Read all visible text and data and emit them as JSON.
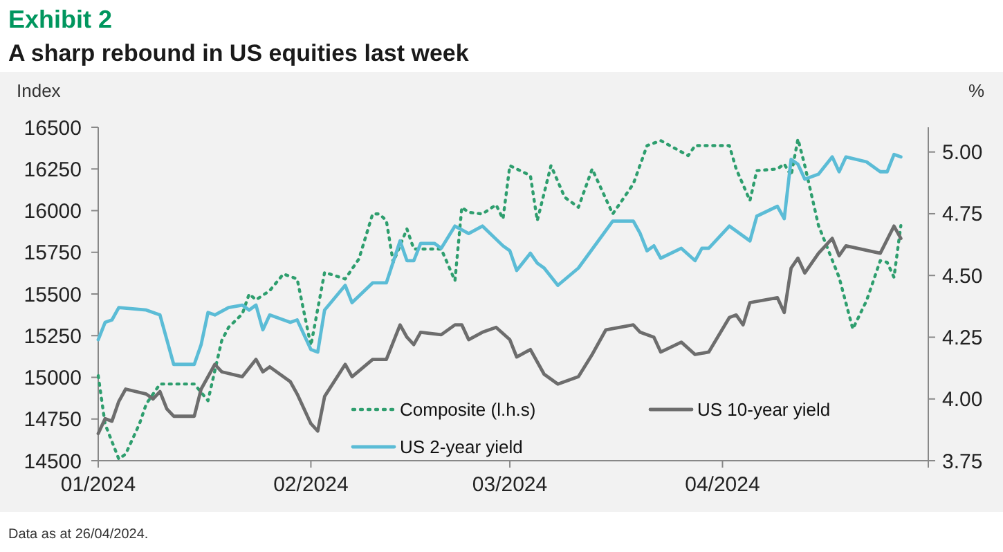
{
  "chart_data": {
    "type": "line",
    "title": "Exhibit 2",
    "subtitle": "A sharp rebound in US equities last week",
    "ylabel": "Index",
    "y2label": "%",
    "annotations": [
      "Data as at 26/04/2024."
    ],
    "xlim": [
      "2024-01-01",
      "2024-05-01"
    ],
    "xticks": [
      {
        "value": "2024-01-01",
        "label": "01/2024"
      },
      {
        "value": "2024-02-01",
        "label": "02/2024"
      },
      {
        "value": "2024-03-01",
        "label": "03/2024"
      },
      {
        "value": "2024-04-01",
        "label": "04/2024"
      },
      {
        "value": "2024-05-01",
        "label": null
      }
    ],
    "ylim": [
      14500,
      16500
    ],
    "yticks": [
      14500,
      14750,
      15000,
      15250,
      15500,
      15750,
      16000,
      16250,
      16500
    ],
    "y2lim": [
      3.75,
      5.1
    ],
    "y2ticks": [
      {
        "value": 3.75,
        "label": "3.75"
      },
      {
        "value": 4,
        "label": "4.00"
      },
      {
        "value": 4.25,
        "label": "4.25"
      },
      {
        "value": 4.5,
        "label": "4.50"
      },
      {
        "value": 4.75,
        "label": "4.75"
      },
      {
        "value": 5,
        "label": "5.00"
      }
    ],
    "grid": false,
    "legend": "bottom",
    "marker": "none",
    "series": [
      {
        "name": "Composite (l.h.s)",
        "color": "#2e9e6e",
        "line_style": "dotted",
        "x": [
          "2024-01-01",
          "2024-01-02",
          "2024-01-04",
          "2024-01-05",
          "2024-01-07",
          "2024-01-08",
          "2024-01-10",
          "2024-01-15",
          "2024-01-17",
          "2024-01-19",
          "2024-01-20",
          "2024-01-22",
          "2024-01-23",
          "2024-01-24",
          "2024-01-26",
          "2024-01-28",
          "2024-01-30",
          "2024-02-01",
          "2024-02-03",
          "2024-02-06",
          "2024-02-08",
          "2024-02-10",
          "2024-02-11",
          "2024-02-12",
          "2024-02-13",
          "2024-02-15",
          "2024-02-16",
          "2024-02-20",
          "2024-02-22",
          "2024-02-23",
          "2024-02-24",
          "2024-02-26",
          "2024-02-28",
          "2024-02-29",
          "2024-03-01",
          "2024-03-04",
          "2024-03-05",
          "2024-03-07",
          "2024-03-09",
          "2024-03-11",
          "2024-03-13",
          "2024-03-16",
          "2024-03-19",
          "2024-03-21",
          "2024-03-23",
          "2024-03-27",
          "2024-03-28",
          "2024-04-02",
          "2024-04-03",
          "2024-04-05",
          "2024-04-06",
          "2024-04-09",
          "2024-04-10",
          "2024-04-11",
          "2024-04-12",
          "2024-04-13",
          "2024-04-15",
          "2024-04-18",
          "2024-04-20",
          "2024-04-22",
          "2024-04-24",
          "2024-04-25",
          "2024-04-26",
          "2024-04-27"
        ],
        "values": [
          15010,
          14720,
          14510,
          14540,
          14720,
          14840,
          14960,
          14960,
          14860,
          15220,
          15300,
          15380,
          15500,
          15465,
          15520,
          15620,
          15590,
          15190,
          15630,
          15590,
          15710,
          15980,
          15980,
          15940,
          15690,
          15890,
          15770,
          15770,
          15580,
          16020,
          15990,
          15980,
          16035,
          15950,
          16270,
          16210,
          15940,
          16270,
          16080,
          16020,
          16250,
          15980,
          16160,
          16390,
          16420,
          16330,
          16390,
          16390,
          16250,
          16060,
          16240,
          16250,
          16280,
          16210,
          16430,
          16270,
          15910,
          15600,
          15290,
          15460,
          15700,
          15690,
          15600,
          15910
        ]
      },
      {
        "name": "US 10-year yield",
        "color": "#6d6d6d",
        "axis": "y2",
        "line_style": "solid",
        "x": [
          "2024-01-01",
          "2024-01-02",
          "2024-01-03",
          "2024-01-04",
          "2024-01-05",
          "2024-01-08",
          "2024-01-09",
          "2024-01-10",
          "2024-01-11",
          "2024-01-12",
          "2024-01-15",
          "2024-01-16",
          "2024-01-18",
          "2024-01-19",
          "2024-01-22",
          "2024-01-24",
          "2024-01-25",
          "2024-01-26",
          "2024-01-29",
          "2024-01-30",
          "2024-02-01",
          "2024-02-02",
          "2024-02-03",
          "2024-02-06",
          "2024-02-07",
          "2024-02-10",
          "2024-02-12",
          "2024-02-14",
          "2024-02-15",
          "2024-02-16",
          "2024-02-17",
          "2024-02-20",
          "2024-02-22",
          "2024-02-23",
          "2024-02-24",
          "2024-02-26",
          "2024-02-28",
          "2024-03-01",
          "2024-03-02",
          "2024-03-04",
          "2024-03-06",
          "2024-03-08",
          "2024-03-11",
          "2024-03-13",
          "2024-03-15",
          "2024-03-19",
          "2024-03-20",
          "2024-03-22",
          "2024-03-23",
          "2024-03-26",
          "2024-03-28",
          "2024-03-30",
          "2024-04-02",
          "2024-04-03",
          "2024-04-04",
          "2024-04-05",
          "2024-04-09",
          "2024-04-10",
          "2024-04-11",
          "2024-04-12",
          "2024-04-13",
          "2024-04-15",
          "2024-04-17",
          "2024-04-18",
          "2024-04-19",
          "2024-04-24",
          "2024-04-26",
          "2024-04-27"
        ],
        "values": [
          3.86,
          3.92,
          3.91,
          3.99,
          4.04,
          4.02,
          4.0,
          4.03,
          3.96,
          3.93,
          3.93,
          4.04,
          4.14,
          4.11,
          4.09,
          4.16,
          4.11,
          4.13,
          4.07,
          4.02,
          3.9,
          3.87,
          4.01,
          4.14,
          4.09,
          4.16,
          4.16,
          4.3,
          4.25,
          4.22,
          4.27,
          4.26,
          4.3,
          4.3,
          4.24,
          4.27,
          4.29,
          4.24,
          4.17,
          4.2,
          4.1,
          4.06,
          4.09,
          4.18,
          4.28,
          4.3,
          4.27,
          4.25,
          4.19,
          4.23,
          4.18,
          4.19,
          4.33,
          4.34,
          4.3,
          4.39,
          4.41,
          4.35,
          4.53,
          4.57,
          4.51,
          4.59,
          4.65,
          4.58,
          4.62,
          4.59,
          4.7,
          4.65
        ]
      },
      {
        "name": "US 2-year yield",
        "color": "#5bbcd6",
        "axis": "y2",
        "line_style": "solid",
        "x": [
          "2024-01-01",
          "2024-01-02",
          "2024-01-03",
          "2024-01-04",
          "2024-01-08",
          "2024-01-10",
          "2024-01-12",
          "2024-01-15",
          "2024-01-16",
          "2024-01-17",
          "2024-01-18",
          "2024-01-20",
          "2024-01-22",
          "2024-01-23",
          "2024-01-24",
          "2024-01-25",
          "2024-01-26",
          "2024-01-29",
          "2024-01-30",
          "2024-02-01",
          "2024-02-02",
          "2024-02-03",
          "2024-02-06",
          "2024-02-07",
          "2024-02-10",
          "2024-02-12",
          "2024-02-14",
          "2024-02-15",
          "2024-02-16",
          "2024-02-17",
          "2024-02-19",
          "2024-02-20",
          "2024-02-22",
          "2024-02-24",
          "2024-02-26",
          "2024-02-29",
          "2024-03-01",
          "2024-03-02",
          "2024-03-04",
          "2024-03-05",
          "2024-03-06",
          "2024-03-08",
          "2024-03-11",
          "2024-03-16",
          "2024-03-19",
          "2024-03-20",
          "2024-03-21",
          "2024-03-22",
          "2024-03-23",
          "2024-03-26",
          "2024-03-28",
          "2024-03-29",
          "2024-03-30",
          "2024-04-02",
          "2024-04-05",
          "2024-04-06",
          "2024-04-09",
          "2024-04-10",
          "2024-04-11",
          "2024-04-12",
          "2024-04-13",
          "2024-04-15",
          "2024-04-17",
          "2024-04-18",
          "2024-04-19",
          "2024-04-22",
          "2024-04-24",
          "2024-04-25",
          "2024-04-26",
          "2024-04-27"
        ],
        "values": [
          4.24,
          4.31,
          4.32,
          4.37,
          4.36,
          4.34,
          4.14,
          4.14,
          4.22,
          4.35,
          4.34,
          4.37,
          4.38,
          4.36,
          4.38,
          4.28,
          4.34,
          4.31,
          4.32,
          4.2,
          4.19,
          4.36,
          4.46,
          4.39,
          4.47,
          4.47,
          4.64,
          4.56,
          4.56,
          4.63,
          4.63,
          4.61,
          4.7,
          4.67,
          4.7,
          4.62,
          4.6,
          4.52,
          4.59,
          4.55,
          4.53,
          4.46,
          4.53,
          4.72,
          4.72,
          4.67,
          4.6,
          4.62,
          4.57,
          4.61,
          4.56,
          4.61,
          4.61,
          4.7,
          4.64,
          4.74,
          4.78,
          4.73,
          4.97,
          4.95,
          4.89,
          4.91,
          4.98,
          4.92,
          4.98,
          4.96,
          4.92,
          4.92,
          4.99,
          4.98
        ]
      }
    ]
  }
}
